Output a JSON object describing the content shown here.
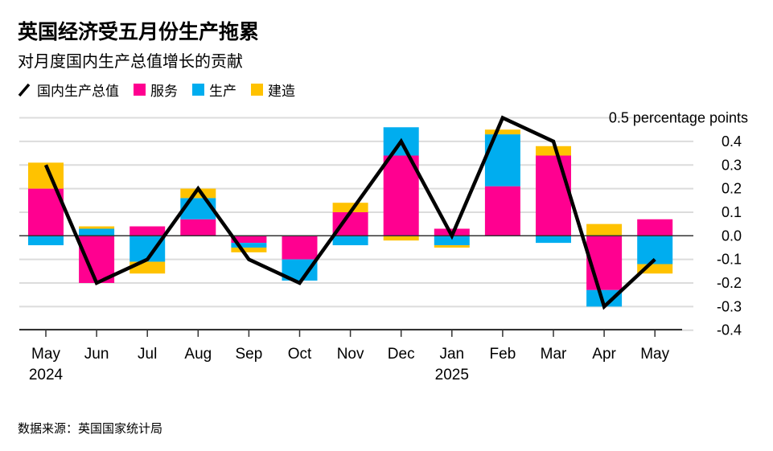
{
  "title": "英国经济受五月份生产拖累",
  "subtitle": "对月度国内生产总值增长的贡献",
  "footer": "数据来源：英国国家统计局",
  "colors": {
    "gdp": "#000000",
    "services": "#ff0090",
    "production": "#00adef",
    "construction": "#ffc200"
  },
  "chart_data": {
    "type": "bar",
    "stacked": true,
    "categories": [
      "May",
      "Jun",
      "Jul",
      "Aug",
      "Sep",
      "Oct",
      "Nov",
      "Dec",
      "Jan",
      "Feb",
      "Mar",
      "Apr",
      "May"
    ],
    "year_labels": [
      "2024",
      "",
      "",
      "",
      "",
      "",
      "",
      "",
      "2025",
      "",
      "",
      "",
      ""
    ],
    "ylabel": "percentage points",
    "ylim": [
      -0.4,
      0.5
    ],
    "yticks": [
      -0.4,
      -0.3,
      -0.2,
      -0.1,
      0.0,
      0.1,
      0.2,
      0.3,
      0.4,
      0.5
    ],
    "ytick_labels": [
      "-0.4",
      "-0.3",
      "-0.2",
      "-0.1",
      "0.0",
      "0.1",
      "0.2",
      "0.3",
      "0.4",
      "0.5 percentage points"
    ],
    "grid": true,
    "legend_position": "top-left",
    "series": [
      {
        "name": "服务",
        "key": "services",
        "values": [
          0.2,
          -0.2,
          0.04,
          0.07,
          -0.03,
          -0.1,
          0.1,
          0.34,
          0.03,
          0.21,
          0.34,
          -0.23,
          0.07
        ]
      },
      {
        "name": "生产",
        "key": "production",
        "values": [
          -0.04,
          0.03,
          -0.11,
          0.09,
          -0.02,
          -0.09,
          -0.04,
          0.12,
          -0.04,
          0.22,
          -0.03,
          -0.07,
          -0.12
        ]
      },
      {
        "name": "建造",
        "key": "construction",
        "values": [
          0.11,
          0.01,
          -0.05,
          0.04,
          -0.02,
          0.0,
          0.04,
          -0.02,
          -0.01,
          0.02,
          0.04,
          0.05,
          -0.04
        ]
      }
    ],
    "line": {
      "name": "国内生产总值",
      "key": "gdp",
      "values": [
        0.3,
        -0.2,
        -0.1,
        0.2,
        -0.1,
        -0.2,
        0.1,
        0.4,
        0.0,
        0.5,
        0.4,
        -0.3,
        -0.1
      ]
    }
  }
}
